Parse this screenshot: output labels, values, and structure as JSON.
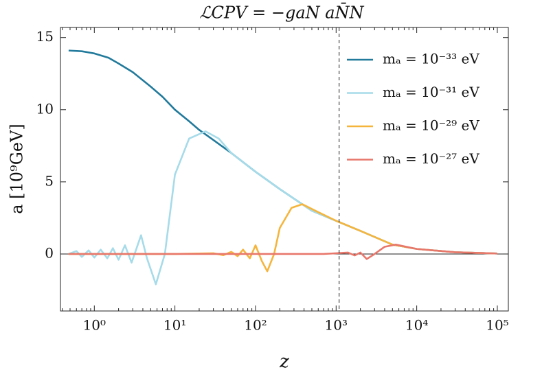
{
  "chart_data": {
    "type": "line",
    "title": "ℒCPV = −gaN aN̄N",
    "x_label": "z",
    "y_label": "a [10⁹GeV]",
    "log_x": true,
    "xlim": [
      0.38,
      137000
    ],
    "ylim": [
      -3.95,
      15.7
    ],
    "xticks": [
      {
        "value": 1,
        "label": "10⁰"
      },
      {
        "value": 10,
        "label": "10¹"
      },
      {
        "value": 100,
        "label": "10²"
      },
      {
        "value": 1000,
        "label": "10³"
      },
      {
        "value": 10000,
        "label": "10⁴"
      },
      {
        "value": 100000,
        "label": "10⁵"
      }
    ],
    "yticks": [
      0,
      5,
      10,
      15
    ],
    "hline": 0,
    "vline": 1090,
    "legend": "upper right",
    "series": [
      {
        "name": "mₐ = 10⁻³³ eV",
        "color": "#217a9b",
        "x": [
          0.48,
          0.7,
          1,
          1.5,
          2,
          3,
          5,
          7,
          10,
          15,
          20,
          30,
          50,
          100,
          200,
          500,
          1000,
          2000,
          5000,
          10000,
          30000,
          100000
        ],
        "values": [
          14.1,
          14.05,
          13.9,
          13.6,
          13.2,
          12.6,
          11.6,
          10.9,
          10.0,
          9.2,
          8.6,
          7.9,
          7.0,
          5.7,
          4.5,
          3.0,
          2.3,
          1.6,
          0.65,
          0.35,
          0.12,
          0.03
        ]
      },
      {
        "name": "mₐ = 10⁻³¹ eV",
        "color": "#a6dbe9",
        "x": [
          0.48,
          0.6,
          0.7,
          0.85,
          1,
          1.2,
          1.45,
          1.7,
          2,
          2.4,
          2.9,
          3.8,
          4.5,
          5.8,
          7.5,
          10,
          15,
          24,
          35,
          50,
          100,
          200,
          500,
          1000,
          2000,
          5000,
          10000,
          30000,
          100000
        ],
        "values": [
          0,
          0.2,
          -0.2,
          0.25,
          -0.25,
          0.3,
          -0.3,
          0.4,
          -0.4,
          0.6,
          -0.6,
          1.3,
          -0.3,
          -2.1,
          0,
          5.5,
          8.0,
          8.5,
          8.0,
          7.0,
          5.7,
          4.5,
          3.0,
          2.3,
          1.6,
          0.65,
          0.35,
          0.12,
          0.03
        ]
      },
      {
        "name": "mₐ = 10⁻²⁹ eV",
        "color": "#f5b53d",
        "x": [
          0.48,
          10,
          30,
          40,
          50,
          60,
          70,
          85,
          100,
          120,
          140,
          170,
          200,
          280,
          380,
          600,
          1000,
          2000,
          5000,
          10000,
          30000,
          100000
        ],
        "values": [
          0,
          0,
          0.05,
          -0.08,
          0.15,
          -0.15,
          0.3,
          -0.3,
          0.6,
          -0.5,
          -1.2,
          0,
          1.8,
          3.2,
          3.45,
          2.9,
          2.3,
          1.6,
          0.65,
          0.35,
          0.12,
          0.03
        ]
      },
      {
        "name": "mₐ = 10⁻²⁷ eV",
        "color": "#e8776b",
        "x": [
          0.48,
          700,
          1000,
          1400,
          1700,
          2000,
          2400,
          3000,
          4000,
          5500,
          10000,
          30000,
          100000
        ],
        "values": [
          0,
          0,
          0.05,
          0.1,
          -0.1,
          0.1,
          -0.35,
          0,
          0.5,
          0.65,
          0.35,
          0.12,
          0.03
        ]
      }
    ]
  }
}
